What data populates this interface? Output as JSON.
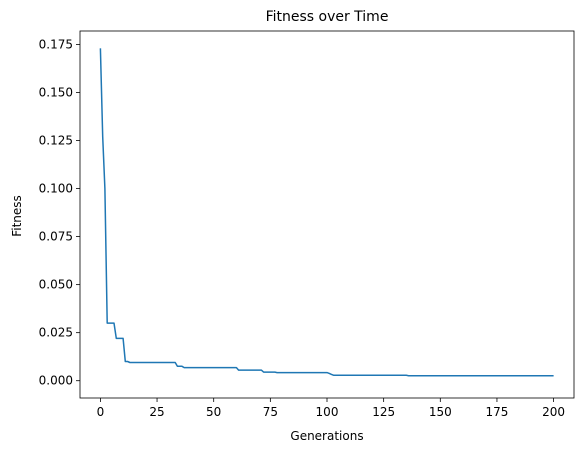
{
  "chart_data": {
    "type": "line",
    "title": "Fitness over Time",
    "xlabel": "Generations",
    "ylabel": "Fitness",
    "xlim": [
      -9,
      209
    ],
    "ylim": [
      -0.009,
      0.182
    ],
    "xticks": [
      0,
      25,
      50,
      75,
      100,
      125,
      150,
      175,
      200
    ],
    "yticks": [
      0.0,
      0.025,
      0.05,
      0.075,
      0.1,
      0.125,
      0.15,
      0.175
    ],
    "ytick_labels": [
      "0.000",
      "0.025",
      "0.050",
      "0.075",
      "0.100",
      "0.125",
      "0.150",
      "0.175"
    ],
    "grid": false,
    "line_color": "#1f77b4",
    "series": [
      {
        "x": [
          0,
          1,
          2,
          3,
          4,
          5,
          6,
          7,
          8,
          9,
          10,
          11,
          12,
          13,
          15,
          20,
          25,
          30,
          33,
          34,
          35,
          36,
          37,
          38,
          40,
          45,
          50,
          55,
          60,
          61,
          65,
          70,
          71,
          72,
          75,
          77,
          78,
          80,
          90,
          100,
          101,
          102,
          103,
          104,
          110,
          120,
          130,
          135,
          136,
          140,
          150,
          160,
          170,
          180,
          190,
          200
        ],
        "y": [
          0.173,
          0.127,
          0.1,
          0.03,
          0.03,
          0.03,
          0.03,
          0.022,
          0.022,
          0.022,
          0.022,
          0.01,
          0.01,
          0.0095,
          0.0095,
          0.0095,
          0.0095,
          0.0095,
          0.0095,
          0.0075,
          0.0075,
          0.0075,
          0.0068,
          0.0068,
          0.0068,
          0.0068,
          0.0068,
          0.0068,
          0.0068,
          0.0055,
          0.0055,
          0.0055,
          0.0055,
          0.0045,
          0.0045,
          0.0045,
          0.0042,
          0.0042,
          0.0042,
          0.0042,
          0.0038,
          0.0033,
          0.0028,
          0.0028,
          0.0028,
          0.0028,
          0.0028,
          0.0028,
          0.0026,
          0.0026,
          0.0026,
          0.0026,
          0.0026,
          0.0026,
          0.0026,
          0.0026
        ]
      }
    ]
  }
}
